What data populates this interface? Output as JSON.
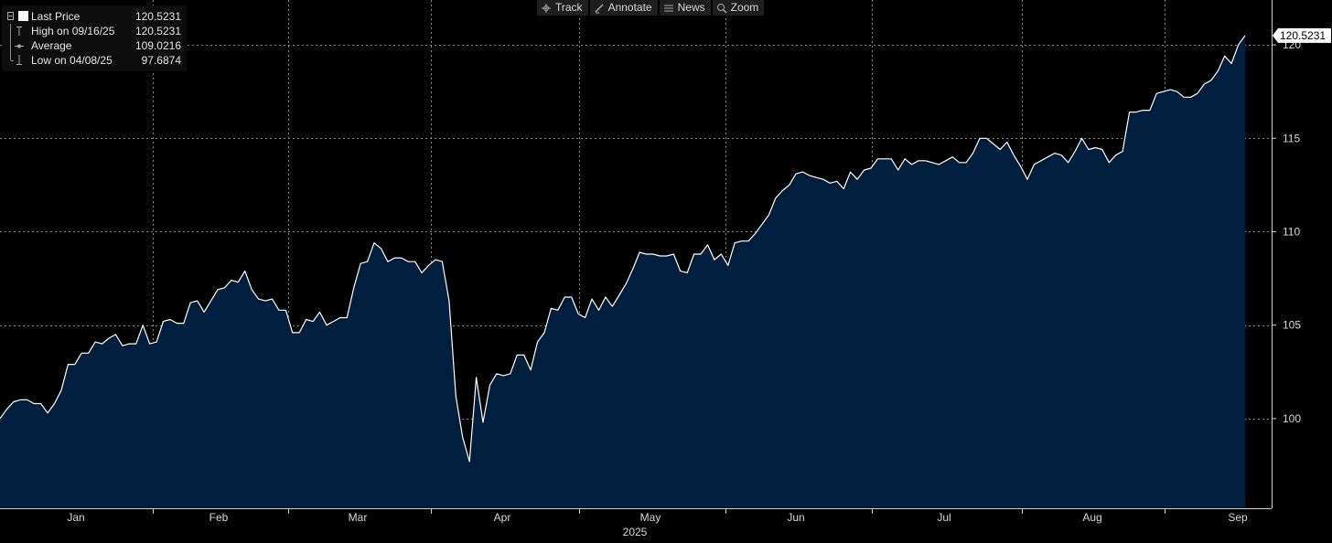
{
  "toolbar": {
    "items": [
      {
        "label": "Track",
        "icon": "crosshair-icon"
      },
      {
        "label": "Annotate",
        "icon": "pencil-icon"
      },
      {
        "label": "News",
        "icon": "news-icon"
      },
      {
        "label": "Zoom",
        "icon": "magnifier-icon"
      }
    ]
  },
  "legend": {
    "rows": [
      {
        "name": "Last Price",
        "value": "120.5231"
      },
      {
        "name": "High on 09/16/25",
        "value": "120.5231"
      },
      {
        "name": "Average",
        "value": "109.0216"
      },
      {
        "name": "Low on 04/08/25",
        "value": "97.6874"
      }
    ]
  },
  "chart_data": {
    "type": "area",
    "xlabel": "2025",
    "ylabel": "",
    "x_tick_labels": [
      "Jan",
      "Feb",
      "Mar",
      "Apr",
      "May",
      "Jun",
      "Jul",
      "Aug",
      "Sep"
    ],
    "y_ticks": [
      100,
      105,
      110,
      115,
      120
    ],
    "ylim": [
      95.2,
      122.4
    ],
    "grid": true,
    "last_value_label": "120.5231",
    "colors": {
      "line": "#ffffff",
      "fill": "#001f3f",
      "grid": "#8a8a8a",
      "background": "#000000",
      "axis": "#cfcfcf"
    },
    "series": [
      {
        "values": [
          100.0,
          100.5,
          100.9,
          101.0,
          101.0,
          100.8,
          100.8,
          100.3,
          100.8,
          101.5,
          102.9,
          102.9,
          103.5,
          103.5,
          104.1,
          104.0,
          104.3,
          104.5,
          103.9,
          104.0,
          104.0,
          105.0,
          104.0,
          104.1,
          105.2,
          105.3,
          105.1,
          105.1,
          106.2,
          106.3,
          105.7,
          106.3,
          106.9,
          107.0,
          107.4,
          107.3,
          107.9,
          106.9,
          106.4,
          106.3,
          106.4,
          105.8,
          105.8,
          104.6,
          104.6,
          105.3,
          105.2,
          105.7,
          105.0,
          105.2,
          105.4,
          105.4,
          107.0,
          108.3,
          108.4,
          109.4,
          109.1,
          108.4,
          108.6,
          108.6,
          108.4,
          108.4,
          107.8,
          108.2,
          108.5,
          108.4,
          106.3,
          101.2,
          99.0,
          97.7,
          102.2,
          99.8,
          101.8,
          102.4,
          102.3,
          102.4,
          103.4,
          103.4,
          102.6,
          104.1,
          104.6,
          105.9,
          105.8,
          106.5,
          106.5,
          105.6,
          105.4,
          106.4,
          105.8,
          106.5,
          106.0,
          106.6,
          107.2,
          108.0,
          108.9,
          108.8,
          108.8,
          108.7,
          108.7,
          108.8,
          107.9,
          107.8,
          108.8,
          108.8,
          109.3,
          108.5,
          108.8,
          108.2,
          109.4,
          109.5,
          109.5,
          109.9,
          110.4,
          110.9,
          111.8,
          112.2,
          112.5,
          113.1,
          113.2,
          113.0,
          112.9,
          112.8,
          112.6,
          112.7,
          112.3,
          113.2,
          112.8,
          113.3,
          113.4,
          113.9,
          113.9,
          113.9,
          113.3,
          113.9,
          113.6,
          113.8,
          113.8,
          113.7,
          113.6,
          113.8,
          114.0,
          113.7,
          113.7,
          114.2,
          115.0,
          115.0,
          114.7,
          114.4,
          114.8,
          114.1,
          113.5,
          112.8,
          113.6,
          113.8,
          114.0,
          114.2,
          114.1,
          113.7,
          114.3,
          115.0,
          114.4,
          114.5,
          114.4,
          113.7,
          114.1,
          114.3,
          116.4,
          116.4,
          116.5,
          116.5,
          117.4,
          117.5,
          117.6,
          117.5,
          117.2,
          117.2,
          117.4,
          117.9,
          118.1,
          118.6,
          119.4,
          119.0,
          120.0,
          120.5
        ]
      }
    ]
  }
}
